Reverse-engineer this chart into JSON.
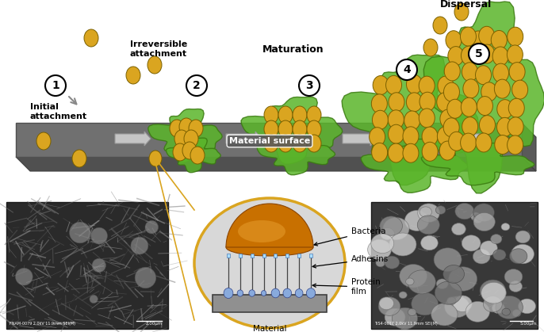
{
  "background_color": "#ffffff",
  "surface_color": "#808080",
  "surface_dark": "#5a5a5a",
  "surface_darker": "#3a3a3a",
  "bacteria_color": "#DAA520",
  "bacteria_edge_color": "#7a6000",
  "biofilm_color": "#5ab52a",
  "biofilm_edge_color": "#3a7a10",
  "biofilm_alpha": 0.85,
  "arrow_color": "#aaaaaa",
  "arrow_edge_color": "#888888",
  "label_color": "#000000",
  "circle_bg": "#ffffff",
  "circle_edge": "#000000",
  "inset_circle_color": "#DAA520",
  "inset_bacteria_color": "#C87000",
  "inset_bacteria_dark": "#8B4500",
  "inset_bg_color": "#D8D8D8",
  "inset_surface_color": "#909090",
  "surface_label": "Material surface",
  "label1": "Initial\nattachment",
  "label2": "Irreversible\nattachment",
  "label_maturation": "Maturation",
  "label_dispersal": "Dispersal",
  "inset_label_bacteria": "Bacteria",
  "inset_label_adhesins": "Adhesins",
  "inset_label_protein": "Protein\nfilm",
  "inset_label_surface": "Material\nSurface",
  "figwidth": 6.86,
  "figheight": 4.19,
  "dpi": 100
}
